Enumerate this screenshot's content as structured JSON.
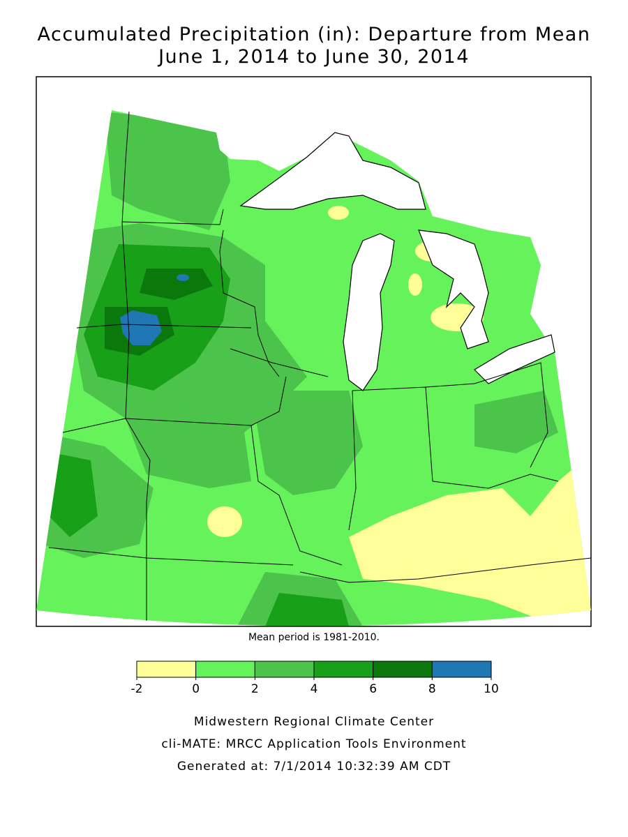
{
  "header": {
    "title": "Accumulated Precipitation (in): Departure from Mean",
    "subtitle": "June 1, 2014 to June 30, 2014"
  },
  "note": "Mean period is 1981-2010.",
  "legend": {
    "bins": [
      -2,
      0,
      2,
      4,
      6,
      8,
      10
    ],
    "colors": [
      "#ffff99",
      "#66f25a",
      "#4cc44c",
      "#18a018",
      "#0a780a",
      "#1f78b4"
    ]
  },
  "footer": [
    "Midwestern Regional Climate Center",
    "cli-MATE: MRCC Application Tools Environment",
    "Generated at: 7/1/2014 10:32:39 AM CDT"
  ]
}
